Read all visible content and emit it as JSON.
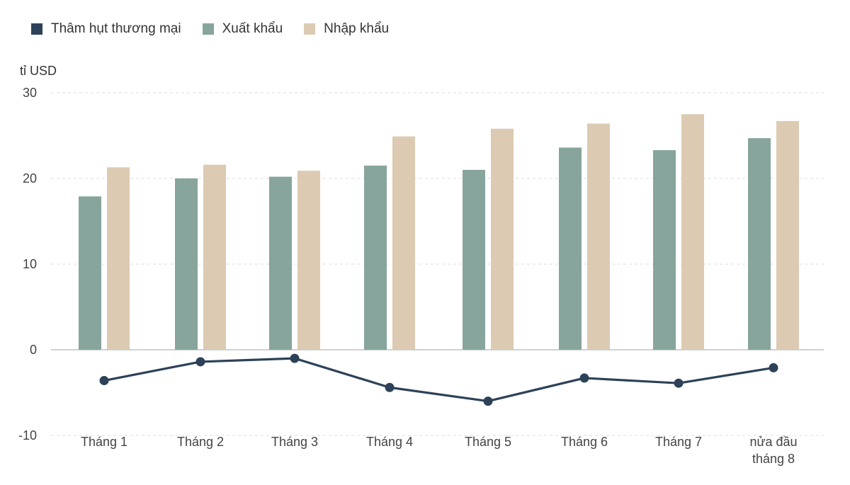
{
  "chart_data": {
    "type": "bar",
    "categories": [
      "Tháng 1",
      "Tháng 2",
      "Tháng 3",
      "Tháng 4",
      "Tháng 5",
      "Tháng 6",
      "Tháng 7",
      "nửa đầu tháng 8"
    ],
    "category_lines": [
      [
        "Tháng 1"
      ],
      [
        "Tháng 2"
      ],
      [
        "Tháng 3"
      ],
      [
        "Tháng 4"
      ],
      [
        "Tháng 5"
      ],
      [
        "Tháng 6"
      ],
      [
        "Tháng 7"
      ],
      [
        "nửa đầu",
        "tháng 8"
      ]
    ],
    "series": [
      {
        "name": "Thâm hụt thương mại",
        "type": "line",
        "color": "#2d4258",
        "values": [
          -3.6,
          -1.4,
          -1.0,
          -4.4,
          -6.0,
          -3.3,
          -3.9,
          -2.1
        ]
      },
      {
        "name": "Xuất khẩu",
        "type": "bar",
        "color": "#87a59c",
        "values": [
          17.9,
          20.0,
          20.2,
          21.5,
          21.0,
          23.6,
          23.3,
          24.7
        ]
      },
      {
        "name": "Nhập khẩu",
        "type": "bar",
        "color": "#dccbb2",
        "values": [
          21.3,
          21.6,
          20.9,
          24.9,
          25.8,
          26.4,
          27.5,
          26.7
        ]
      }
    ],
    "ylabel": "tỉ USD",
    "ylim": [
      -9,
      30
    ],
    "yticks": [
      30,
      20,
      10,
      0,
      -10
    ],
    "grid": true,
    "legend": "top-left"
  }
}
